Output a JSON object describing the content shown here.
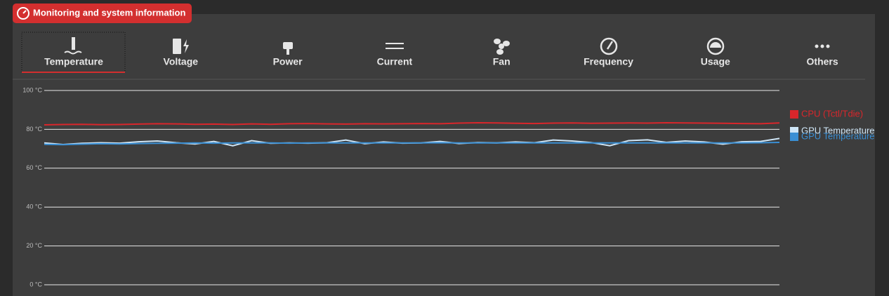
{
  "header": {
    "title": "Monitoring and system information"
  },
  "tabs": [
    "Temperature",
    "Voltage",
    "Power",
    "Current",
    "Fan",
    "Frequency",
    "Usage",
    "Others"
  ],
  "chart_data": {
    "type": "line",
    "ylim": [
      0,
      100
    ],
    "yticks": [
      {
        "value": 0,
        "label": "0 °C"
      },
      {
        "value": 20,
        "label": "20 °C"
      },
      {
        "value": 40,
        "label": "40 °C"
      },
      {
        "value": 60,
        "label": "60 °C"
      },
      {
        "value": 80,
        "label": "80 °C"
      },
      {
        "value": 100,
        "label": "100 °C"
      }
    ],
    "grid": true,
    "series": [
      {
        "name": "CPU (Tctl/Tdie)",
        "color": "#d9262b",
        "values": [
          82.3,
          82.5,
          82.6,
          82.4,
          82.5,
          82.7,
          82.9,
          82.8,
          82.6,
          82.7,
          82.5,
          82.8,
          82.6,
          82.9,
          83.0,
          82.8,
          82.7,
          82.9,
          82.8,
          82.9,
          83.0,
          82.9,
          83.2,
          83.4,
          83.3,
          83.1,
          83.0,
          83.2,
          83.3,
          83.1,
          83.2,
          83.3,
          83.2,
          83.4,
          83.3,
          83.2,
          83.1,
          83.0,
          82.9,
          83.3
        ]
      },
      {
        "name": "GPU Temperature",
        "color": "#cfe6f7",
        "values": [
          73.0,
          72.2,
          72.8,
          73.1,
          72.9,
          73.6,
          74.0,
          73.1,
          72.5,
          73.8,
          71.5,
          74.2,
          72.8,
          73.0,
          72.9,
          73.1,
          74.5,
          72.6,
          73.5,
          72.9,
          73.0,
          73.8,
          72.7,
          73.2,
          73.0,
          73.5,
          73.1,
          74.5,
          74.0,
          73.2,
          71.6,
          74.2,
          74.6,
          73.3,
          74.0,
          73.5,
          72.4,
          73.6,
          73.8,
          75.3
        ]
      },
      {
        "name": "GPU Temperature",
        "color": "#3a8fd4",
        "values": [
          72.3,
          72.1,
          72.4,
          72.6,
          72.5,
          72.7,
          72.8,
          72.9,
          73.0,
          72.9,
          73.0,
          73.0,
          73.0,
          72.9,
          73.0,
          73.0,
          73.0,
          73.0,
          73.0,
          73.0,
          73.0,
          73.1,
          73.0,
          73.0,
          73.0,
          73.0,
          73.0,
          73.0,
          73.0,
          73.0,
          73.0,
          73.0,
          73.0,
          73.0,
          73.0,
          73.0,
          73.0,
          73.0,
          73.1,
          73.3
        ]
      }
    ]
  }
}
